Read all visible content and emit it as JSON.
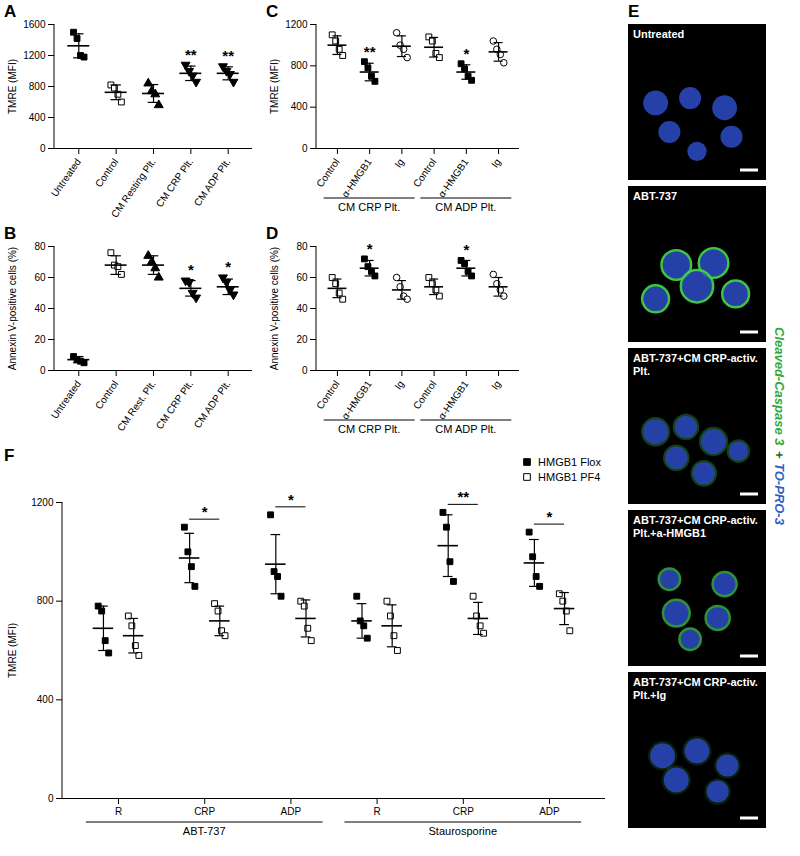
{
  "chart_data": [
    {
      "panel": "A",
      "type": "scatter",
      "y_label": "TMRE (MFI)",
      "ylim": [
        0,
        1600
      ],
      "yticks": [
        0,
        400,
        800,
        1200,
        1600
      ],
      "series": [
        {
          "name": "Untreated",
          "marker": "square",
          "color": "#000000",
          "values": [
            1500,
            1420,
            1200,
            1180
          ],
          "mean": 1325,
          "sd": 155
        },
        {
          "name": "Control",
          "marker": "square-open",
          "color": "#000000",
          "values": [
            820,
            780,
            700,
            600
          ],
          "mean": 725,
          "sd": 95
        },
        {
          "name": "CM Resting Plt.",
          "marker": "triangle",
          "color": "#000000",
          "values": [
            840,
            740,
            700,
            560
          ],
          "mean": 710,
          "sd": 115
        },
        {
          "name": "CM CRP Plt.",
          "marker": "triangle-down",
          "color": "#000000",
          "values": [
            1080,
            1000,
            940,
            860
          ],
          "mean": 970,
          "sd": 93,
          "annotation": "**"
        },
        {
          "name": "CM ADP Plt.",
          "marker": "triangle-down",
          "color": "#000000",
          "values": [
            1060,
            1000,
            960,
            860
          ],
          "mean": 970,
          "sd": 84,
          "annotation": "**"
        }
      ]
    },
    {
      "panel": "B",
      "type": "scatter",
      "y_label": "Annexin V-positive cells (%)",
      "ylim": [
        0,
        80
      ],
      "yticks": [
        0,
        20,
        40,
        60,
        80
      ],
      "series": [
        {
          "name": "Untreated",
          "marker": "square",
          "color": "#000000",
          "values": [
            9,
            7,
            6,
            5
          ],
          "mean": 7,
          "sd": 2
        },
        {
          "name": "Control",
          "marker": "square-open",
          "color": "#000000",
          "values": [
            76,
            68,
            67,
            62
          ],
          "mean": 68,
          "sd": 6
        },
        {
          "name": "CM Rest. Plt.",
          "marker": "triangle",
          "color": "#000000",
          "values": [
            74,
            70,
            66,
            60
          ],
          "mean": 68,
          "sd": 6
        },
        {
          "name": "CM CRP Plt.",
          "marker": "triangle-down",
          "color": "#000000",
          "values": [
            58,
            57,
            50,
            47
          ],
          "mean": 53,
          "sd": 5,
          "annotation": "*"
        },
        {
          "name": "CM ADP Plt.",
          "marker": "triangle-down",
          "color": "#000000",
          "values": [
            60,
            57,
            52,
            49
          ],
          "mean": 54,
          "sd": 5,
          "annotation": "*"
        }
      ]
    },
    {
      "panel": "C",
      "type": "scatter",
      "y_label": "TMRE (MFI)",
      "ylim": [
        0,
        1200
      ],
      "yticks": [
        0,
        400,
        800,
        1200
      ],
      "series": [
        {
          "name": "Control",
          "group": "CM CRP Plt.",
          "marker": "square-open",
          "color": "#000000",
          "values": [
            1100,
            1040,
            960,
            900
          ],
          "mean": 1000,
          "sd": 90
        },
        {
          "name": "α-HMGB1",
          "group": "CM CRP Plt.",
          "marker": "square",
          "color": "#000000",
          "values": [
            840,
            780,
            700,
            650
          ],
          "mean": 740,
          "sd": 85,
          "annotation": "**"
        },
        {
          "name": "Ig",
          "group": "CM CRP Plt.",
          "marker": "circle-open",
          "color": "#000000",
          "values": [
            1120,
            1000,
            960,
            880
          ],
          "mean": 990,
          "sd": 100
        },
        {
          "name": "Control",
          "group": "CM ADP Plt.",
          "marker": "square-open",
          "color": "#000000",
          "values": [
            1080,
            1040,
            920,
            880
          ],
          "mean": 980,
          "sd": 95
        },
        {
          "name": "α-HMGB1",
          "group": "CM ADP Plt.",
          "marker": "square",
          "color": "#000000",
          "values": [
            820,
            770,
            700,
            660
          ],
          "mean": 740,
          "sd": 70,
          "annotation": "*"
        },
        {
          "name": "Ig",
          "group": "CM ADP Plt.",
          "marker": "circle-open",
          "color": "#000000",
          "values": [
            1040,
            960,
            910,
            830
          ],
          "mean": 935,
          "sd": 90
        }
      ]
    },
    {
      "panel": "D",
      "type": "scatter",
      "y_label": "Annexin V-positive cells (%)",
      "ylim": [
        0,
        80
      ],
      "yticks": [
        0,
        20,
        40,
        60,
        80
      ],
      "series": [
        {
          "name": "Control",
          "group": "CM CRP Plt.",
          "marker": "square-open",
          "color": "#000000",
          "values": [
            60,
            56,
            50,
            46
          ],
          "mean": 53,
          "sd": 6
        },
        {
          "name": "α-HMGB1",
          "group": "CM CRP Plt.",
          "marker": "square",
          "color": "#000000",
          "values": [
            72,
            67,
            64,
            61
          ],
          "mean": 66,
          "sd": 5,
          "annotation": "*"
        },
        {
          "name": "Ig",
          "group": "CM CRP Plt.",
          "marker": "circle-open",
          "color": "#000000",
          "values": [
            60,
            54,
            48,
            46
          ],
          "mean": 52,
          "sd": 6
        },
        {
          "name": "Control",
          "group": "CM ADP Plt.",
          "marker": "square-open",
          "color": "#000000",
          "values": [
            60,
            56,
            52,
            48
          ],
          "mean": 54,
          "sd": 5
        },
        {
          "name": "α-HMGB1",
          "group": "CM ADP Plt.",
          "marker": "square",
          "color": "#000000",
          "values": [
            71,
            69,
            64,
            61
          ],
          "mean": 66,
          "sd": 5,
          "annotation": "*"
        },
        {
          "name": "Ig",
          "group": "CM ADP Plt.",
          "marker": "circle-open",
          "color": "#000000",
          "values": [
            62,
            56,
            52,
            48
          ],
          "mean": 54,
          "sd": 6
        }
      ]
    },
    {
      "panel": "F",
      "type": "scatter",
      "y_label": "TMRE (MFI)",
      "ylim": [
        0,
        1200
      ],
      "yticks": [
        0,
        400,
        800,
        1200
      ],
      "legend": "top-right",
      "categories": [
        "R",
        "CRP",
        "ADP",
        "R",
        "CRP",
        "ADP"
      ],
      "groups": [
        "ABT-737",
        "ABT-737",
        "ABT-737",
        "Staurosporine",
        "Staurosporine",
        "Staurosporine"
      ],
      "annotations": [
        null,
        "*",
        "*",
        null,
        "**",
        "*"
      ],
      "series": [
        {
          "name": "HMGB1 Flox",
          "marker": "square",
          "color": "#000000",
          "values": [
            [
              780,
              760,
              640,
              590
            ],
            [
              1100,
              1000,
              940,
              860
            ],
            [
              1150,
              920,
              900,
              820
            ],
            [
              820,
              720,
              700,
              650
            ],
            [
              1160,
              1100,
              960,
              880
            ],
            [
              1080,
              980,
              900,
              860
            ]
          ],
          "mean": [
            690,
            975,
            950,
            720,
            1025,
            955
          ],
          "sd": [
            90,
            100,
            120,
            70,
            125,
            95
          ]
        },
        {
          "name": "HMGB1 PF4",
          "marker": "square-open",
          "color": "#000000",
          "values": [
            [
              740,
              700,
              620,
              580
            ],
            [
              790,
              760,
              680,
              660
            ],
            [
              800,
              780,
              690,
              640
            ],
            [
              800,
              740,
              660,
              600
            ],
            [
              820,
              740,
              700,
              670
            ],
            [
              830,
              800,
              760,
              680
            ]
          ],
          "mean": [
            660,
            720,
            730,
            700,
            730,
            770
          ],
          "sd": [
            70,
            60,
            75,
            85,
            65,
            65
          ]
        }
      ]
    }
  ],
  "image_panel": {
    "panel": "E",
    "images": [
      "Untreated",
      "ABT-737",
      "ABT-737+CM CRP-activ. Plt.",
      "ABT-737+CM CRP-activ. Plt.+a-HMGB1",
      "ABT-737+CM CRP-activ. Plt.+Ig"
    ],
    "side_label": [
      {
        "text": "Cleaved-Caspase 3",
        "color": "#2fa83a"
      },
      {
        "text": "+",
        "color": "#1f6b28"
      },
      {
        "text": "TO-PRO-3",
        "color": "#2f5fc8"
      }
    ]
  }
}
